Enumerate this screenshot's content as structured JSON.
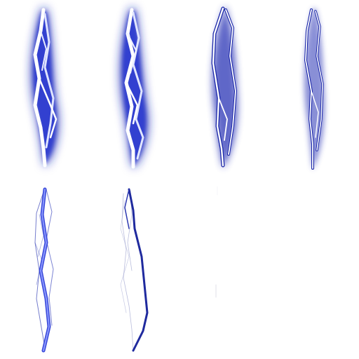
{
  "sprite_sheet": {
    "columns": 4,
    "rows": 2,
    "frame_count": 8,
    "colors": {
      "background": "#ffffff",
      "glow": "#1c2ab8",
      "glow_dark": "#101a7a",
      "core": "#ffffff",
      "core_tint": "#c8d0ff",
      "line": "#2733b8",
      "line_light": "#6f7fe0"
    },
    "frames": [
      {
        "index": 1,
        "state": "full-glow"
      },
      {
        "index": 2,
        "state": "full-glow-forked"
      },
      {
        "index": 3,
        "state": "fading-glow"
      },
      {
        "index": 4,
        "state": "thin-glow"
      },
      {
        "index": 5,
        "state": "outline-bright-strand"
      },
      {
        "index": 6,
        "state": "outline-dark-strand"
      },
      {
        "index": 7,
        "state": "near-empty"
      },
      {
        "index": 8,
        "state": "empty"
      }
    ]
  }
}
